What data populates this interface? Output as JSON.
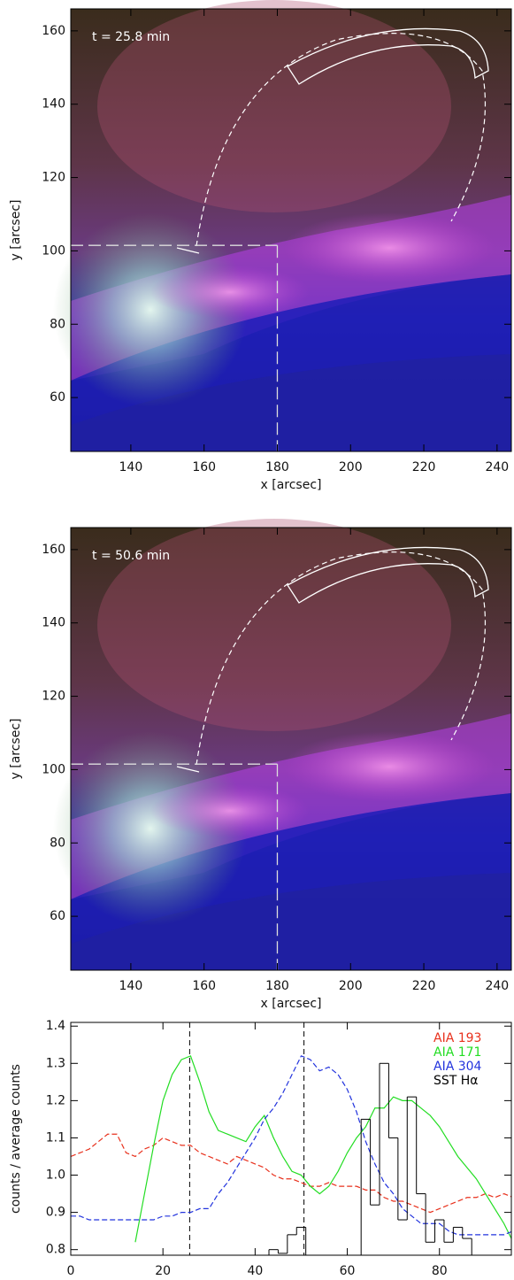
{
  "chart_data": [
    {
      "type": "image",
      "annotation": "t = 25.8 min",
      "xlabel": "x [arcsec]",
      "ylabel": "y [arcsec]",
      "xlim": [
        123.6,
        243.9
      ],
      "ylim": [
        45.3,
        166
      ],
      "xticks": [
        140,
        160,
        180,
        200,
        220,
        240
      ],
      "yticks": [
        60,
        80,
        100,
        120,
        140,
        160
      ],
      "crosshair": {
        "x": 180,
        "y": 101.5
      }
    },
    {
      "type": "image",
      "annotation": "t = 50.6 min",
      "xlabel": "x [arcsec]",
      "ylabel": "y [arcsec]",
      "xlim": [
        123.6,
        243.9
      ],
      "ylim": [
        45.3,
        166
      ],
      "xticks": [
        140,
        160,
        180,
        200,
        220,
        240
      ],
      "yticks": [
        60,
        80,
        100,
        120,
        140,
        160
      ],
      "crosshair": {
        "x": 180,
        "y": 101.5
      }
    },
    {
      "type": "line",
      "xlabel": "time [min]",
      "ylabel": "counts / average counts",
      "xlim": [
        0,
        95.6
      ],
      "ylim": [
        0.785,
        1.41
      ],
      "xticks": [
        0,
        20,
        40,
        60,
        80
      ],
      "yticks": [
        0.8,
        0.9,
        {
          "value": 1,
          "label": "1.0"
        },
        1.1,
        1.2,
        1.3,
        1.4
      ],
      "markers": [
        25.8,
        50.6
      ],
      "x": [
        0,
        2,
        4,
        6,
        8,
        10,
        12,
        14,
        16,
        18,
        20,
        22,
        24,
        26,
        28,
        30,
        32,
        34,
        36,
        38,
        40,
        42,
        44,
        46,
        48,
        50,
        52,
        54,
        56,
        58,
        60,
        62,
        64,
        66,
        68,
        70,
        72,
        74,
        76,
        78,
        80,
        82,
        84,
        86,
        88,
        90,
        92,
        94,
        96
      ],
      "series": [
        {
          "name": "AIA 193",
          "color": "#e8301c",
          "style": "dashed",
          "values": [
            1.05,
            1.06,
            1.07,
            1.09,
            1.11,
            1.11,
            1.06,
            1.05,
            1.07,
            1.08,
            1.1,
            1.09,
            1.08,
            1.08,
            1.06,
            1.05,
            1.04,
            1.03,
            1.05,
            1.04,
            1.03,
            1.02,
            1.0,
            0.99,
            0.99,
            0.98,
            0.97,
            0.97,
            0.98,
            0.97,
            0.97,
            0.97,
            0.96,
            0.96,
            0.94,
            0.93,
            0.93,
            0.92,
            0.91,
            0.9,
            0.91,
            0.92,
            0.93,
            0.94,
            0.94,
            0.95,
            0.94,
            0.95,
            0.94
          ]
        },
        {
          "name": "AIA 171",
          "color": "#22dd22",
          "style": "solid",
          "values": [
            null,
            null,
            null,
            null,
            null,
            null,
            null,
            0.82,
            0.95,
            1.08,
            1.2,
            1.27,
            1.31,
            1.32,
            1.25,
            1.17,
            1.12,
            1.11,
            1.1,
            1.09,
            1.13,
            1.16,
            1.1,
            1.05,
            1.01,
            1.0,
            0.97,
            0.95,
            0.97,
            1.01,
            1.06,
            1.1,
            1.13,
            1.18,
            1.18,
            1.21,
            1.2,
            1.2,
            1.18,
            1.16,
            1.13,
            1.09,
            1.05,
            1.02,
            0.99,
            0.95,
            0.91,
            0.87,
            0.82
          ]
        },
        {
          "name": "AIA 304",
          "color": "#2233dd",
          "style": "dashed",
          "values": [
            0.89,
            0.89,
            0.88,
            0.88,
            0.88,
            0.88,
            0.88,
            0.88,
            0.88,
            0.88,
            0.89,
            0.89,
            0.9,
            0.9,
            0.91,
            0.91,
            0.95,
            0.98,
            1.02,
            1.06,
            1.1,
            1.15,
            1.18,
            1.22,
            1.27,
            1.32,
            1.31,
            1.28,
            1.29,
            1.27,
            1.23,
            1.17,
            1.09,
            1.03,
            0.98,
            0.95,
            0.91,
            0.89,
            0.87,
            0.87,
            0.87,
            0.85,
            0.84,
            0.84,
            0.84,
            0.84,
            0.84,
            0.84,
            0.85
          ]
        },
        {
          "name": "SST Hα",
          "color": "#000000",
          "style": "steps",
          "values": [
            null,
            null,
            null,
            null,
            null,
            null,
            null,
            null,
            null,
            null,
            null,
            null,
            null,
            null,
            null,
            null,
            null,
            null,
            null,
            null,
            null,
            null,
            0.8,
            0.79,
            0.84,
            0.86,
            null,
            null,
            null,
            null,
            null,
            null,
            1.15,
            0.92,
            1.3,
            1.1,
            0.88,
            1.21,
            0.95,
            0.82,
            0.88,
            0.82,
            0.86,
            0.83,
            null,
            null,
            null,
            null,
            null
          ]
        }
      ]
    }
  ]
}
